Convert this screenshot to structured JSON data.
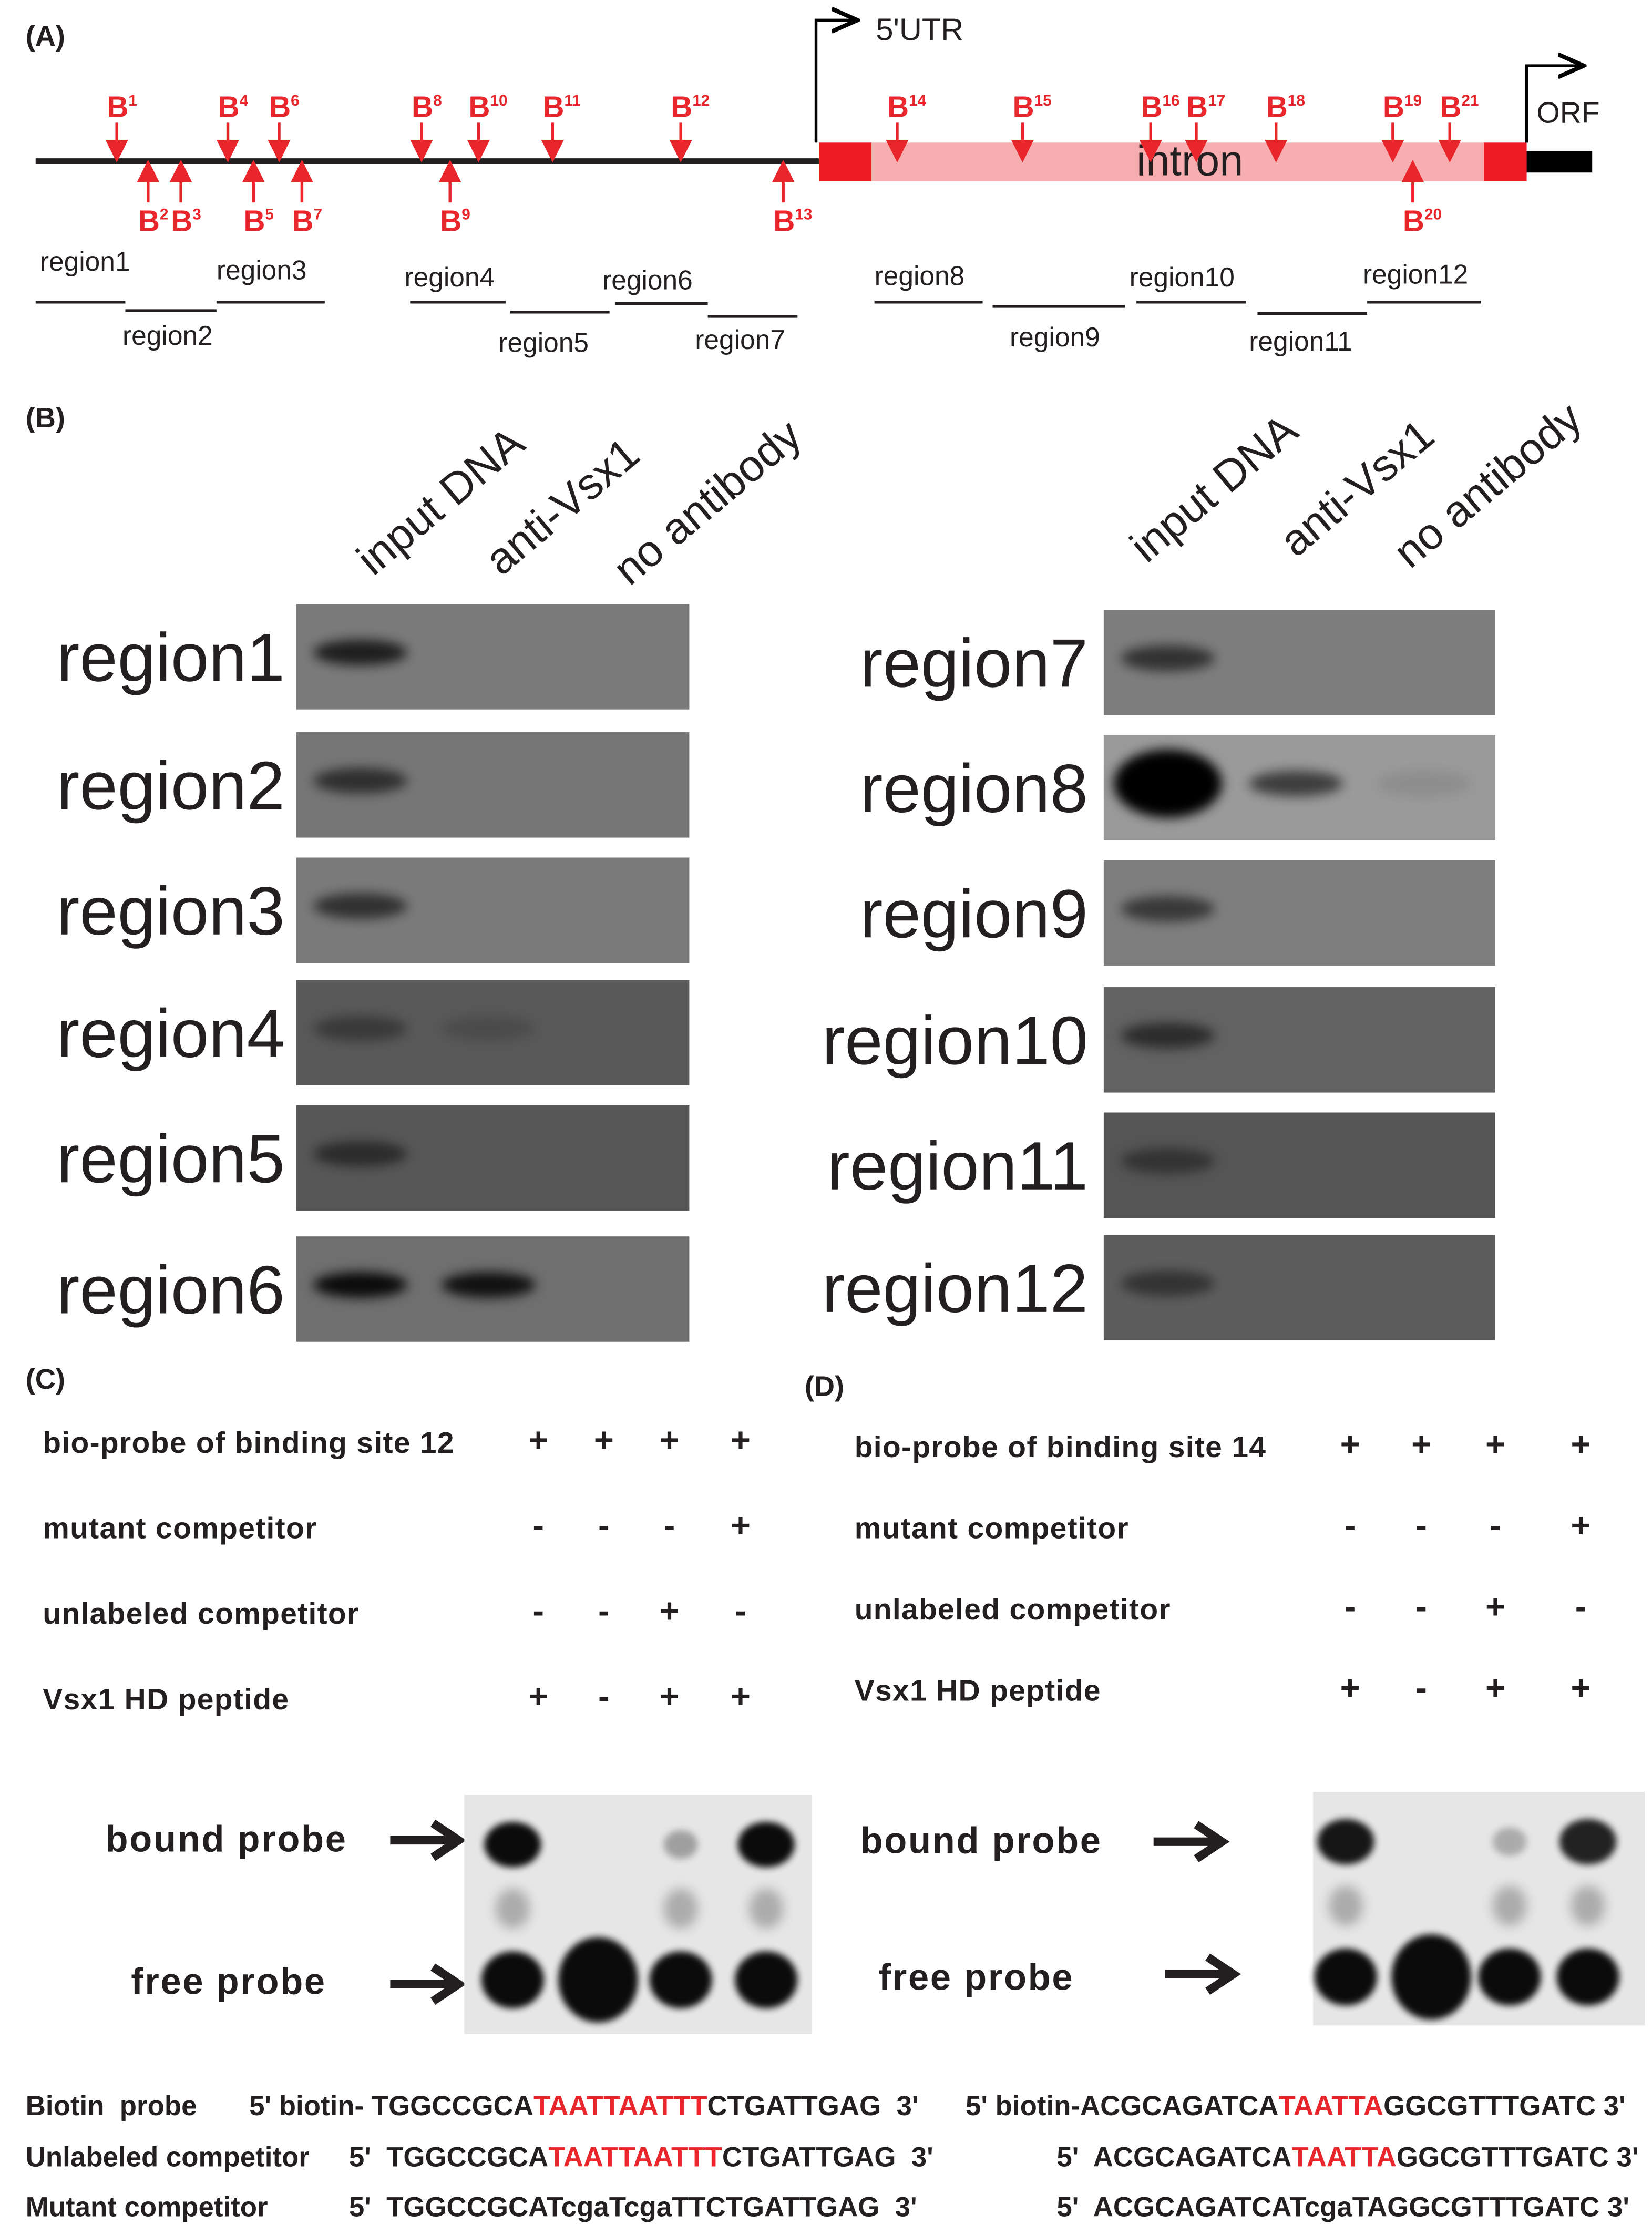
{
  "panel_labels": [
    "(A)",
    "(B)",
    "(C)",
    "(D)"
  ],
  "panel_a": {
    "utr_label": "5'UTR",
    "intron_label": "intron",
    "orf_label": "ORF",
    "sites": [
      {
        "label": "B",
        "sup": "1"
      },
      {
        "label": "B",
        "sup": "2"
      },
      {
        "label": "B",
        "sup": "3"
      },
      {
        "label": "B",
        "sup": "4"
      },
      {
        "label": "B",
        "sup": "5"
      },
      {
        "label": "B",
        "sup": "6"
      },
      {
        "label": "B",
        "sup": "7"
      },
      {
        "label": "B",
        "sup": "8"
      },
      {
        "label": "B",
        "sup": "9"
      },
      {
        "label": "B",
        "sup": "10"
      },
      {
        "label": "B",
        "sup": "11"
      },
      {
        "label": "B",
        "sup": "12"
      },
      {
        "label": "B",
        "sup": "13"
      },
      {
        "label": "B",
        "sup": "14"
      },
      {
        "label": "B",
        "sup": "15"
      },
      {
        "label": "B",
        "sup": "16"
      },
      {
        "label": "B",
        "sup": "17"
      },
      {
        "label": "B",
        "sup": "18"
      },
      {
        "label": "B",
        "sup": "19"
      },
      {
        "label": "B",
        "sup": "20"
      },
      {
        "label": "B",
        "sup": "21"
      }
    ],
    "regions": [
      "region1",
      "region2",
      "region3",
      "region4",
      "region5",
      "region6",
      "region7",
      "region8",
      "region9",
      "region10",
      "region11",
      "region12"
    ]
  },
  "panel_b": {
    "columns": [
      "input DNA",
      "anti-Vsx1",
      "no antibody"
    ],
    "left_rows": [
      "region1",
      "region2",
      "region3",
      "region4",
      "region5",
      "region6"
    ],
    "right_rows": [
      "region7",
      "region8",
      "region9",
      "region10",
      "region11",
      "region12"
    ]
  },
  "panel_c": {
    "conditions": [
      {
        "label": "bio-probe of binding site 12",
        "signs": [
          "+",
          "+",
          "+",
          "+"
        ]
      },
      {
        "label": "mutant competitor",
        "signs": [
          "-",
          "-",
          "-",
          "+"
        ]
      },
      {
        "label": "unlabeled competitor",
        "signs": [
          "-",
          "-",
          "+",
          "-"
        ]
      },
      {
        "label": "Vsx1 HD peptide",
        "signs": [
          "+",
          "-",
          "+",
          "+"
        ]
      }
    ],
    "bound_label": "bound probe",
    "free_label": "free probe"
  },
  "panel_d": {
    "conditions": [
      {
        "label": "bio-probe of binding site 14",
        "signs": [
          "+",
          "+",
          "+",
          "+"
        ]
      },
      {
        "label": "mutant competitor",
        "signs": [
          "-",
          "-",
          "-",
          "+"
        ]
      },
      {
        "label": "unlabeled competitor",
        "signs": [
          "-",
          "-",
          "+",
          "-"
        ]
      },
      {
        "label": "Vsx1 HD peptide",
        "signs": [
          "+",
          "-",
          "+",
          "+"
        ]
      }
    ],
    "bound_label": "bound probe",
    "free_label": "free probe"
  },
  "sequences": {
    "highlight_color": "#e8262b",
    "rows": [
      {
        "label": "Biotin  probe",
        "left": [
          {
            "text": "5' biotin- TGGCCGCA",
            "red": false
          },
          {
            "text": "TAATTAATTT",
            "red": true
          },
          {
            "text": "CTGATTGAG  3'",
            "red": false
          }
        ],
        "right": [
          {
            "text": "5' biotin-ACGCAGATCA",
            "red": false
          },
          {
            "text": "TAATTA",
            "red": true
          },
          {
            "text": "GGCGTTTGATC 3'",
            "red": false
          }
        ]
      },
      {
        "label": "Unlabeled competitor",
        "left": [
          {
            "text": "5'  TGGCCGCA",
            "red": false
          },
          {
            "text": "TAATTAATTT",
            "red": true
          },
          {
            "text": "CTGATTGAG  3'",
            "red": false
          }
        ],
        "right": [
          {
            "text": "5'  ACGCAGATCA",
            "red": false
          },
          {
            "text": "TAATTA",
            "red": true
          },
          {
            "text": "GGCGTTTGATC 3'",
            "red": false
          }
        ]
      },
      {
        "label": "Mutant competitor",
        "left": [
          {
            "text": "5'  TGGCCGCATcgaTcgaTTCTGATTGAG  3'",
            "red": false
          }
        ],
        "right": [
          {
            "text": "5'  ACGCAGATCATcgaTAGGCGTTTGATC 3'",
            "red": false
          }
        ]
      }
    ]
  }
}
